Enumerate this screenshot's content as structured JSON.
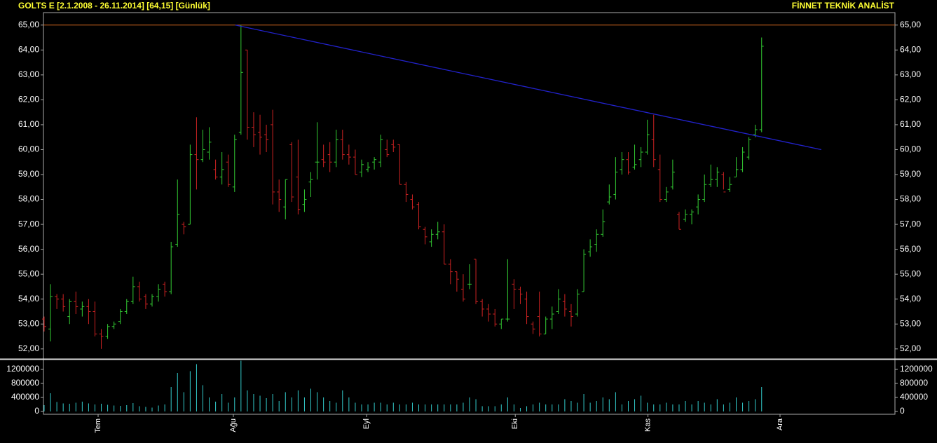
{
  "chart_data": {
    "type": "ohlc",
    "title": "GOLTS E  [2.1.2008 - 26.11.2014]  [64,15]  [Günlük]",
    "brand": "FİNNET TEKNİK ANALİST",
    "up_color": "#33cc33",
    "down_color": "#cc2222",
    "volume_color": "#33cccc",
    "xlim": [
      -0.11,
      134
    ],
    "xticks": [
      {
        "value": 8.5,
        "label": "Tem"
      },
      {
        "value": 29.8,
        "label": "Ağu"
      },
      {
        "value": 50.8,
        "label": "Eyl"
      },
      {
        "value": 74.2,
        "label": "Eki"
      },
      {
        "value": 95.1,
        "label": "Kas"
      },
      {
        "value": 115.9,
        "label": "Ara"
      }
    ],
    "ylim": [
      51.6,
      65.5
    ],
    "yticks": [
      {
        "value": 52,
        "label": "52,00"
      },
      {
        "value": 53,
        "label": "53,00"
      },
      {
        "value": 54,
        "label": "54,00"
      },
      {
        "value": 55,
        "label": "55,00"
      },
      {
        "value": 56,
        "label": "56,00"
      },
      {
        "value": 57,
        "label": "57,00"
      },
      {
        "value": 58,
        "label": "58,00"
      },
      {
        "value": 59,
        "label": "59,00"
      },
      {
        "value": 60,
        "label": "60,00"
      },
      {
        "value": 61,
        "label": "61,00"
      },
      {
        "value": 62,
        "label": "62,00"
      },
      {
        "value": 63,
        "label": "63,00"
      },
      {
        "value": 64,
        "label": "64,00"
      },
      {
        "value": 65,
        "label": "65,00"
      }
    ],
    "volume_ylim": [
      -80000,
      1480000
    ],
    "volume_ticks": [
      0,
      400000,
      800000,
      1200000
    ],
    "hline": {
      "y": 65,
      "color": "#d2691e"
    },
    "trendline": {
      "x": [
        30.1,
        122.4
      ],
      "y": [
        65,
        60
      ],
      "color": "#2222cc"
    },
    "open": [
      53.2,
      52.8,
      54.1,
      54.0,
      53.3,
      53.9,
      53.6,
      53.7,
      53.5,
      52.6,
      52.5,
      52.9,
      53.1,
      53.5,
      53.9,
      54.5,
      54.1,
      53.8,
      54.1,
      54.6,
      54.3,
      56.2,
      57.0,
      57.0,
      59.8,
      59.6,
      59.9,
      59.2,
      58.9,
      59.5,
      58.5,
      60.7,
      64.0,
      60.9,
      60.7,
      60.6,
      61.0,
      58.3,
      57.7,
      60.2,
      58.9,
      57.8,
      58.7,
      59.5,
      59.6,
      59.8,
      59.5,
      60.4,
      59.8,
      59.7,
      59.1,
      59.2,
      59.5,
      59.5,
      60.0,
      60.2,
      60.2,
      58.6,
      58.0,
      57.8,
      56.8,
      56.3,
      56.6,
      56.7,
      55.4,
      55.1,
      54.4,
      54.6,
      55.6,
      53.9,
      53.6,
      53.4,
      53.0,
      53.2,
      54.6,
      54.4,
      54.0,
      53.0,
      53.3,
      52.6,
      53.2,
      53.5,
      53.9,
      53.5,
      53.4,
      54.3,
      55.9,
      56.2,
      56.6,
      57.9,
      58.2,
      59.2,
      59.6,
      59.3,
      59.6,
      59.9,
      60.4,
      59.2,
      58.0,
      58.5,
      57.4,
      57.2,
      57.4,
      57.7,
      58.0,
      58.6,
      58.8,
      59.0,
      58.4,
      58.9,
      59.2,
      59.7,
      60.6,
      60.8
    ],
    "high": [
      53.3,
      54.6,
      54.2,
      54.2,
      54.0,
      54.3,
      53.9,
      54.0,
      53.9,
      52.8,
      53.0,
      53.1,
      53.6,
      54.0,
      54.9,
      54.7,
      54.2,
      54.2,
      54.6,
      54.7,
      56.3,
      58.8,
      57.1,
      60.2,
      61.3,
      60.8,
      60.9,
      59.6,
      59.9,
      59.8,
      60.6,
      65.0,
      64.0,
      61.5,
      61.4,
      61.0,
      61.6,
      58.8,
      58.8,
      60.3,
      60.4,
      58.4,
      59.1,
      61.1,
      60.2,
      60.3,
      60.8,
      60.8,
      60.2,
      60.0,
      59.6,
      59.5,
      59.7,
      60.6,
      60.4,
      60.4,
      60.2,
      58.7,
      58.2,
      57.9,
      56.9,
      56.8,
      57.1,
      57.0,
      55.6,
      55.1,
      55.0,
      55.4,
      55.6,
      54.0,
      53.8,
      53.6,
      53.2,
      55.6,
      54.8,
      54.5,
      54.3,
      53.1,
      54.3,
      53.3,
      53.7,
      54.4,
      54.2,
      53.8,
      54.4,
      56.0,
      56.4,
      56.8,
      57.6,
      58.6,
      59.7,
      59.9,
      59.9,
      60.2,
      60.1,
      61.2,
      61.4,
      59.8,
      58.5,
      59.6,
      57.5,
      57.6,
      57.6,
      58.2,
      59.0,
      59.4,
      59.3,
      59.1,
      58.9,
      59.7,
      60.1,
      60.5,
      61.0,
      64.5
    ],
    "low": [
      52.7,
      52.3,
      53.6,
      53.5,
      53.0,
      53.4,
      53.3,
      53.0,
      52.5,
      52.0,
      52.4,
      52.8,
      53.0,
      53.4,
      53.8,
      53.9,
      53.6,
      53.7,
      53.9,
      54.1,
      54.2,
      56.1,
      56.6,
      57.0,
      58.4,
      59.5,
      59.6,
      58.8,
      58.6,
      58.5,
      58.3,
      60.6,
      60.4,
      60.1,
      59.8,
      59.9,
      57.8,
      57.5,
      57.2,
      57.9,
      57.4,
      57.5,
      58.1,
      58.8,
      59.3,
      59.1,
      59.3,
      59.6,
      59.4,
      59.0,
      58.9,
      59.1,
      59.2,
      59.3,
      59.7,
      59.9,
      58.6,
      57.9,
      57.6,
      56.8,
      56.2,
      56.1,
      56.4,
      55.4,
      54.6,
      54.3,
      53.9,
      54.4,
      53.8,
      53.3,
      53.1,
      52.9,
      52.8,
      53.1,
      53.6,
      53.8,
      53.0,
      52.6,
      52.5,
      52.6,
      52.8,
      53.4,
      53.3,
      52.9,
      53.3,
      54.3,
      55.7,
      55.9,
      56.5,
      57.8,
      58.0,
      59.0,
      59.0,
      59.2,
      59.3,
      59.8,
      59.3,
      57.9,
      57.9,
      58.4,
      56.8,
      57.1,
      57.0,
      57.4,
      57.9,
      58.5,
      58.5,
      58.4,
      58.3,
      58.9,
      59.1,
      59.6,
      60.5,
      60.7
    ],
    "close": [
      52.9,
      54.1,
      54.0,
      53.7,
      53.9,
      53.7,
      53.7,
      53.5,
      52.6,
      52.5,
      52.9,
      53.0,
      53.5,
      53.9,
      54.5,
      54.0,
      53.8,
      54.1,
      54.4,
      54.3,
      56.1,
      57.4,
      56.9,
      59.8,
      59.6,
      60.0,
      60.3,
      58.9,
      59.2,
      58.6,
      60.4,
      63.1,
      60.9,
      60.6,
      60.5,
      60.4,
      58.3,
      58.0,
      58.8,
      58.1,
      57.6,
      58.0,
      58.8,
      59.5,
      59.5,
      59.5,
      60.4,
      59.8,
      59.7,
      59.0,
      59.4,
      59.3,
      59.6,
      60.4,
      59.8,
      60.1,
      58.6,
      58.2,
      57.7,
      56.9,
      56.5,
      56.6,
      56.7,
      55.4,
      55.1,
      54.8,
      54.0,
      54.6,
      53.9,
      53.6,
      53.4,
      53.0,
      53.2,
      53.2,
      54.4,
      54.2,
      53.3,
      52.8,
      52.6,
      53.2,
      53.4,
      54.0,
      53.6,
      53.3,
      54.2,
      55.8,
      56.1,
      56.6,
      57.1,
      58.1,
      59.1,
      59.6,
      59.1,
      59.4,
      59.9,
      60.6,
      59.6,
      58.0,
      58.3,
      59.1,
      56.8,
      57.4,
      57.5,
      58.0,
      58.6,
      58.8,
      59.1,
      58.3,
      58.6,
      59.2,
      59.9,
      60.4,
      60.8,
      64.15
    ],
    "volume": [
      180000,
      520000,
      270000,
      230000,
      220000,
      250000,
      280000,
      230000,
      200000,
      220000,
      190000,
      170000,
      160000,
      180000,
      240000,
      150000,
      130000,
      110000,
      170000,
      200000,
      700000,
      1100000,
      550000,
      1150000,
      1350000,
      750000,
      400000,
      280000,
      500000,
      250000,
      400000,
      1450000,
      600000,
      500000,
      450000,
      380000,
      500000,
      300000,
      550000,
      400000,
      600000,
      400000,
      650000,
      550000,
      400000,
      300000,
      250000,
      600000,
      400000,
      250000,
      200000,
      200000,
      250000,
      250000,
      200000,
      250000,
      200000,
      200000,
      250000,
      200000,
      200000,
      200000,
      200000,
      200000,
      200000,
      200000,
      250000,
      400000,
      350000,
      150000,
      150000,
      150000,
      200000,
      400000,
      200000,
      100000,
      150000,
      200000,
      250000,
      200000,
      200000,
      200000,
      350000,
      300000,
      250000,
      500000,
      250000,
      300000,
      400000,
      350000,
      550000,
      200000,
      300000,
      350000,
      450000,
      250000,
      200000,
      200000,
      250000,
      200000,
      200000,
      300000,
      200000,
      300000,
      250000,
      200000,
      350000,
      200000,
      250000,
      400000,
      250000,
      300000,
      350000,
      700000
    ]
  }
}
